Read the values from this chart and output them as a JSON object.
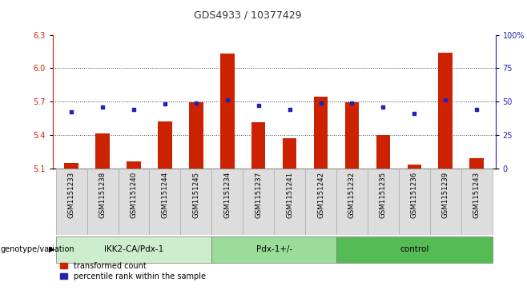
{
  "title": "GDS4933 / 10377429",
  "samples": [
    "GSM1151233",
    "GSM1151238",
    "GSM1151240",
    "GSM1151244",
    "GSM1151245",
    "GSM1151234",
    "GSM1151237",
    "GSM1151241",
    "GSM1151242",
    "GSM1151232",
    "GSM1151235",
    "GSM1151236",
    "GSM1151239",
    "GSM1151243"
  ],
  "transformed_count": [
    5.15,
    5.41,
    5.16,
    5.52,
    5.69,
    6.13,
    5.51,
    5.37,
    5.74,
    5.69,
    5.4,
    5.13,
    6.14,
    5.19
  ],
  "percentile_rank": [
    42,
    46,
    44,
    48,
    49,
    51,
    47,
    44,
    49,
    49,
    46,
    41,
    51,
    44
  ],
  "groups": [
    {
      "label": "IKK2-CA/Pdx-1",
      "start": 0,
      "end": 5,
      "color": "#cceecc"
    },
    {
      "label": "Pdx-1+/-",
      "start": 5,
      "end": 9,
      "color": "#99dd99"
    },
    {
      "label": "control",
      "start": 9,
      "end": 14,
      "color": "#55bb55"
    }
  ],
  "ylim_left": [
    5.1,
    6.3
  ],
  "ylim_right": [
    0,
    100
  ],
  "yticks_left": [
    5.1,
    5.4,
    5.7,
    6.0,
    6.3
  ],
  "yticks_right": [
    0,
    25,
    50,
    75,
    100
  ],
  "ytick_labels_right": [
    "0",
    "25",
    "50",
    "75",
    "100%"
  ],
  "bar_color": "#cc2200",
  "dot_color": "#2222bb",
  "bar_width": 0.45,
  "grid_color": "#444444",
  "background_color": "#ffffff",
  "plot_bg_color": "#ffffff",
  "sample_cell_color": "#dddddd",
  "xlabel_left": "genotype/variation",
  "legend_items": [
    "transformed count",
    "percentile rank within the sample"
  ]
}
